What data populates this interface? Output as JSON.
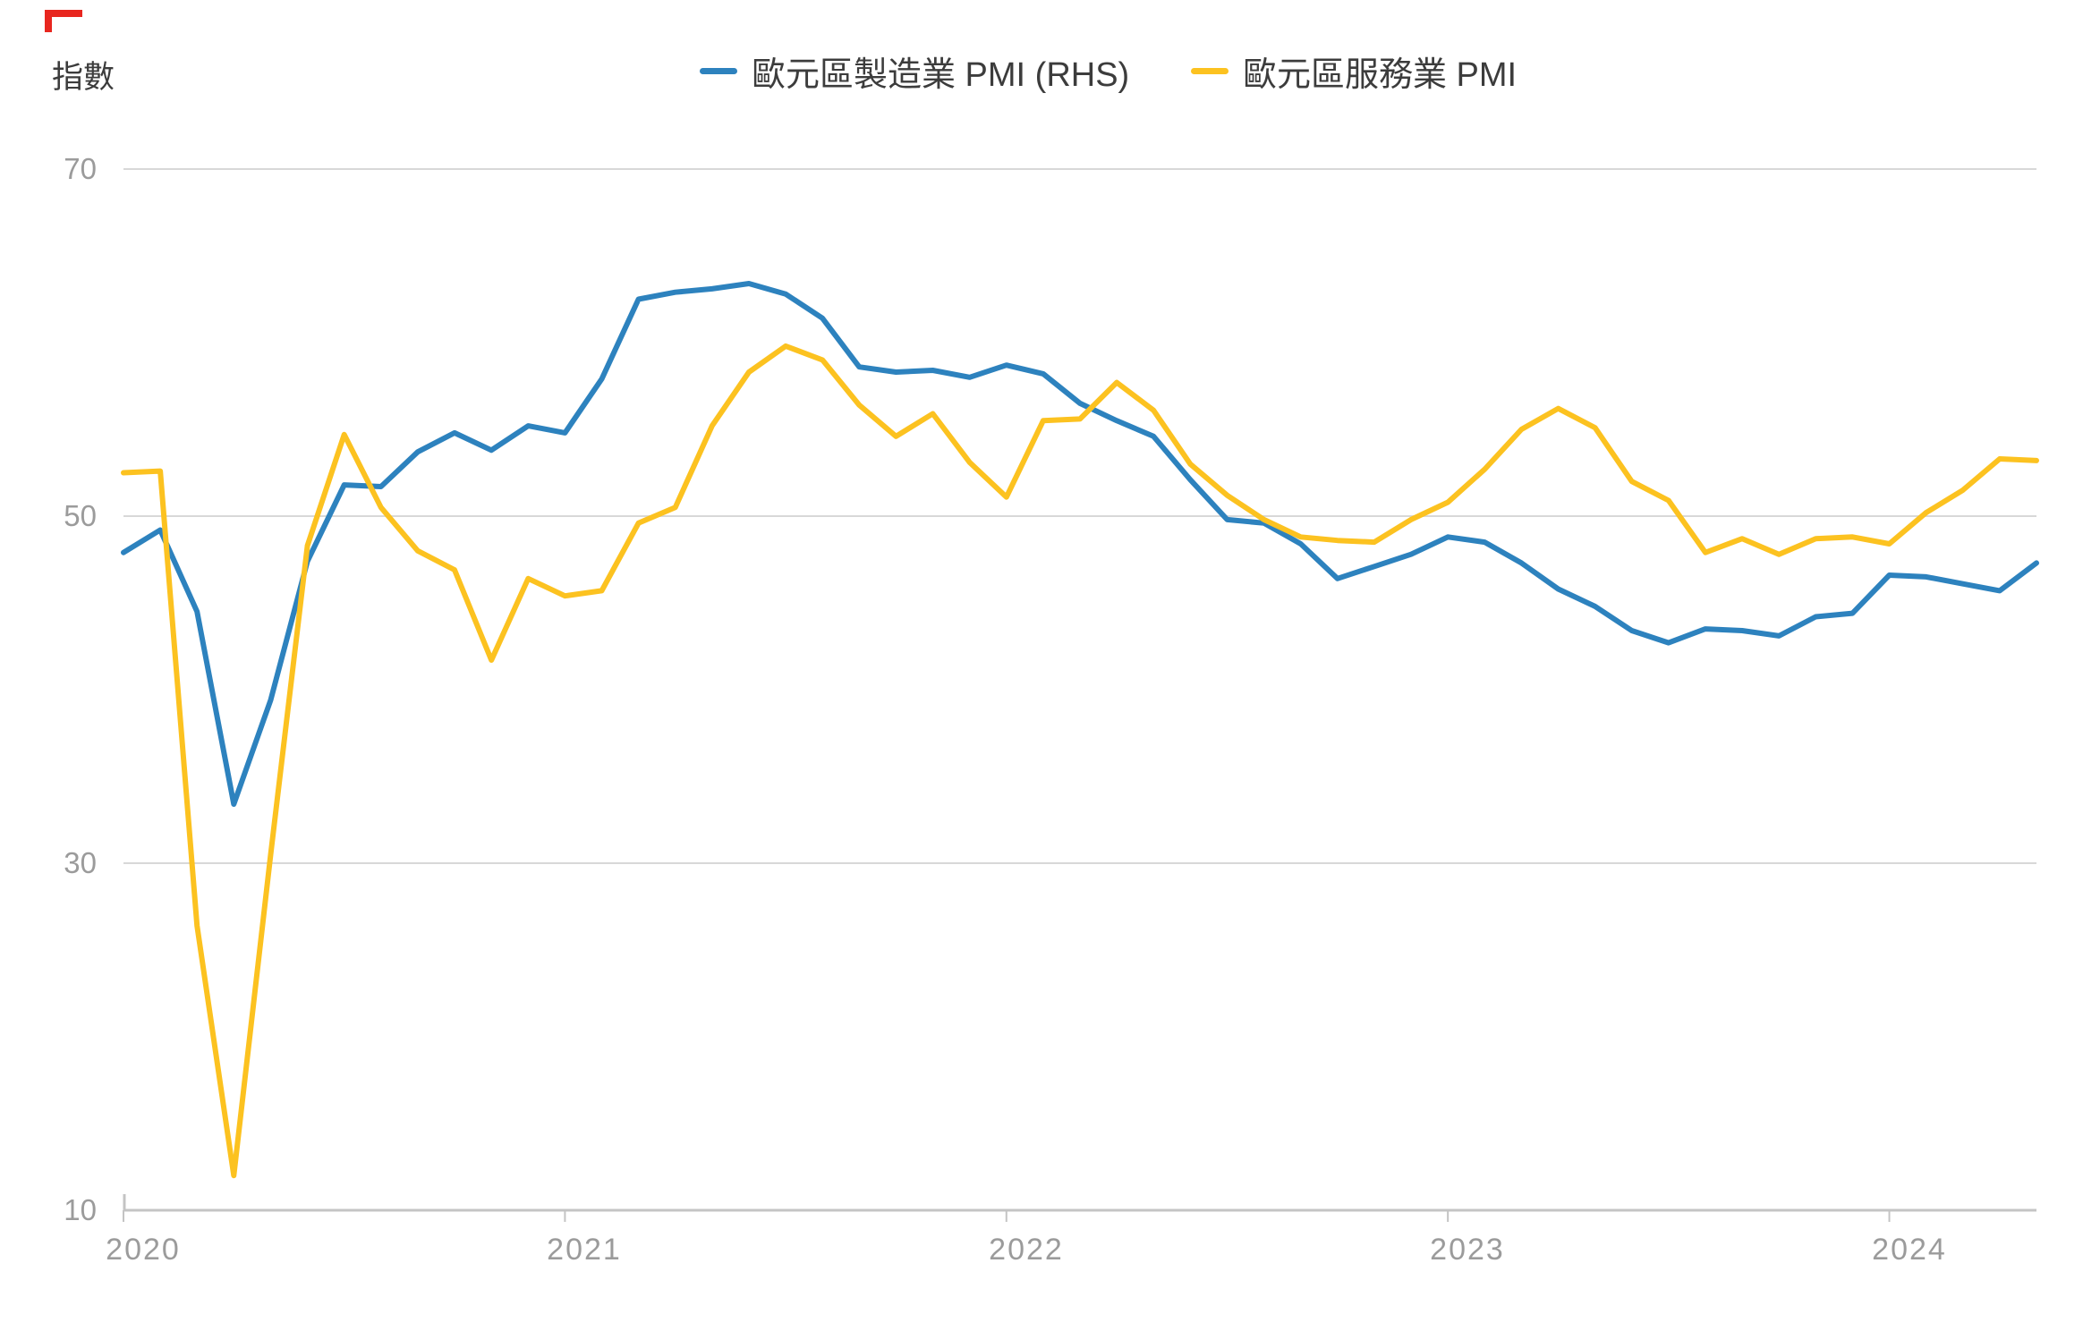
{
  "axis_title": "指數",
  "legend": {
    "items": [
      {
        "label": "歐元區製造業 PMI (RHS)",
        "color": "#2d82be"
      },
      {
        "label": "歐元區服務業 PMI",
        "color": "#fcc220"
      }
    ]
  },
  "y_axis": {
    "title": "指數",
    "ticks": [
      "70",
      "50",
      "30",
      "10"
    ]
  },
  "x_axis": {
    "ticks": [
      "2020",
      "2021",
      "2022",
      "2023",
      "2024"
    ]
  },
  "colors": {
    "manufacturing_line": "#2d82be",
    "services_line": "#fcc220",
    "gridline": "#d8d8d8",
    "axis_line": "#c4c4c4",
    "tick_label": "#9b9b9b",
    "text": "#3c3c3c",
    "annotation_red": "#e8261f"
  },
  "chart_data": {
    "type": "line",
    "title": "",
    "ylabel": "指數",
    "ylim": [
      10,
      70
    ],
    "yticks": [
      70,
      50,
      30,
      10
    ],
    "gridlines_at": [
      70,
      50,
      30
    ],
    "baseline_at": 10,
    "grid": "horizontal",
    "legend_position": "top",
    "x_start": "2020-01",
    "x_end": "2024-05",
    "frequency": "monthly",
    "xticks": [
      "2020",
      "2021",
      "2022",
      "2023",
      "2024"
    ],
    "xtick_month_index": [
      0,
      12,
      24,
      36,
      48
    ],
    "series": [
      {
        "name": "歐元區製造業 PMI (RHS)",
        "color": "#2d82be",
        "values": [
          47.9,
          49.2,
          44.5,
          33.4,
          39.4,
          47.4,
          51.8,
          51.7,
          53.7,
          54.8,
          53.8,
          55.2,
          54.8,
          57.9,
          62.5,
          62.9,
          63.1,
          63.4,
          62.8,
          61.4,
          58.6,
          58.3,
          58.4,
          58.0,
          58.7,
          58.2,
          56.5,
          55.5,
          54.6,
          52.1,
          49.8,
          49.6,
          48.4,
          46.4,
          47.1,
          47.8,
          48.8,
          48.5,
          47.3,
          45.8,
          44.8,
          43.4,
          42.7,
          43.5,
          43.4,
          43.1,
          44.2,
          44.4,
          46.6,
          46.5,
          46.1,
          45.7,
          47.3
        ]
      },
      {
        "name": "歐元區服務業 PMI",
        "color": "#fcc220",
        "values": [
          52.5,
          52.6,
          26.4,
          12.0,
          30.5,
          48.3,
          54.7,
          50.5,
          48.0,
          46.9,
          41.7,
          46.4,
          45.4,
          45.7,
          49.6,
          50.5,
          55.2,
          58.3,
          59.8,
          59.0,
          56.4,
          54.6,
          55.9,
          53.1,
          51.1,
          55.5,
          55.6,
          57.7,
          56.1,
          53.0,
          51.2,
          49.8,
          48.8,
          48.6,
          48.5,
          49.8,
          50.8,
          52.7,
          55.0,
          56.2,
          55.1,
          52.0,
          50.9,
          47.9,
          48.7,
          47.8,
          48.7,
          48.8,
          48.4,
          50.2,
          51.5,
          53.3,
          53.2
        ]
      }
    ]
  }
}
